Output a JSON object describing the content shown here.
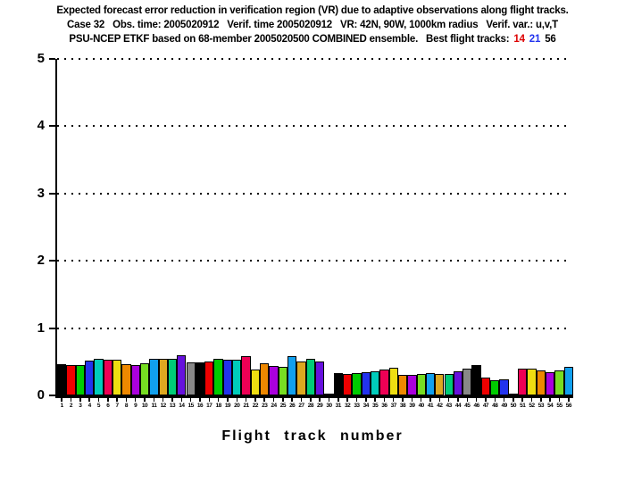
{
  "title": {
    "line1": "Expected forecast error reduction in verification region (VR) due to adaptive observations along flight tracks.",
    "line2": "Case 32   Obs. time: 2005020912   Verif. time 2005020912   VR: 42N, 90W, 1000km radius   Verif. var.: u,v,T",
    "line3_prefix": "PSU-NCEP ETKF based on 68-member 2005020500 COMBINED ensemble.   Best flight tracks:",
    "best_tracks": [
      {
        "label": "14",
        "color": "#dd0000"
      },
      {
        "label": "21",
        "color": "#2233ee"
      },
      {
        "label": "56",
        "color": "#000000"
      }
    ]
  },
  "chart_data": {
    "type": "bar",
    "title": "Expected forecast error reduction in VR due to adaptive observations along flight tracks",
    "xlabel": "Flight track number",
    "ylabel": "",
    "ylim": [
      0,
      5
    ],
    "yticks": [
      0,
      1,
      2,
      3,
      4,
      5
    ],
    "grid": "horizontal dotted lines at y = 1,2,3,4,5",
    "legend": "none",
    "categories": [
      "1",
      "2",
      "3",
      "4",
      "5",
      "6",
      "7",
      "8",
      "9",
      "10",
      "11",
      "12",
      "13",
      "14",
      "15",
      "16",
      "17",
      "18",
      "19",
      "20",
      "21",
      "22",
      "23",
      "24",
      "25",
      "26",
      "27",
      "28",
      "29",
      "30",
      "31",
      "32",
      "33",
      "34",
      "35",
      "36",
      "37",
      "38",
      "39",
      "40",
      "41",
      "42",
      "43",
      "44",
      "45",
      "46",
      "47",
      "48",
      "49",
      "50",
      "51",
      "52",
      "53",
      "54",
      "55",
      "56"
    ],
    "values": [
      0.46,
      0.45,
      0.45,
      0.52,
      0.54,
      0.53,
      0.53,
      0.46,
      0.45,
      0.48,
      0.54,
      0.55,
      0.54,
      0.6,
      0.49,
      0.49,
      0.51,
      0.55,
      0.53,
      0.53,
      0.58,
      0.39,
      0.48,
      0.44,
      0.42,
      0.59,
      0.51,
      0.54,
      0.51,
      0.02,
      0.33,
      0.32,
      0.33,
      0.34,
      0.36,
      0.38,
      0.41,
      0.3,
      0.31,
      0.32,
      0.33,
      0.32,
      0.32,
      0.36,
      0.4,
      0.45,
      0.27,
      0.22,
      0.24,
      0.02,
      0.4,
      0.4,
      0.37,
      0.34,
      0.37,
      0.43
    ],
    "bar_color_cycle": [
      "#000000",
      "#ee0000",
      "#00cc00",
      "#2233ee",
      "#00ccbb",
      "#ee0055",
      "#eedd11",
      "#ee8800",
      "#aa00dd",
      "#77dd22",
      "#11a0ee",
      "#dda820",
      "#00cc77",
      "#6611dd",
      "#888888"
    ],
    "bar_outline_color": "#000000",
    "axis_color": "#000000"
  }
}
